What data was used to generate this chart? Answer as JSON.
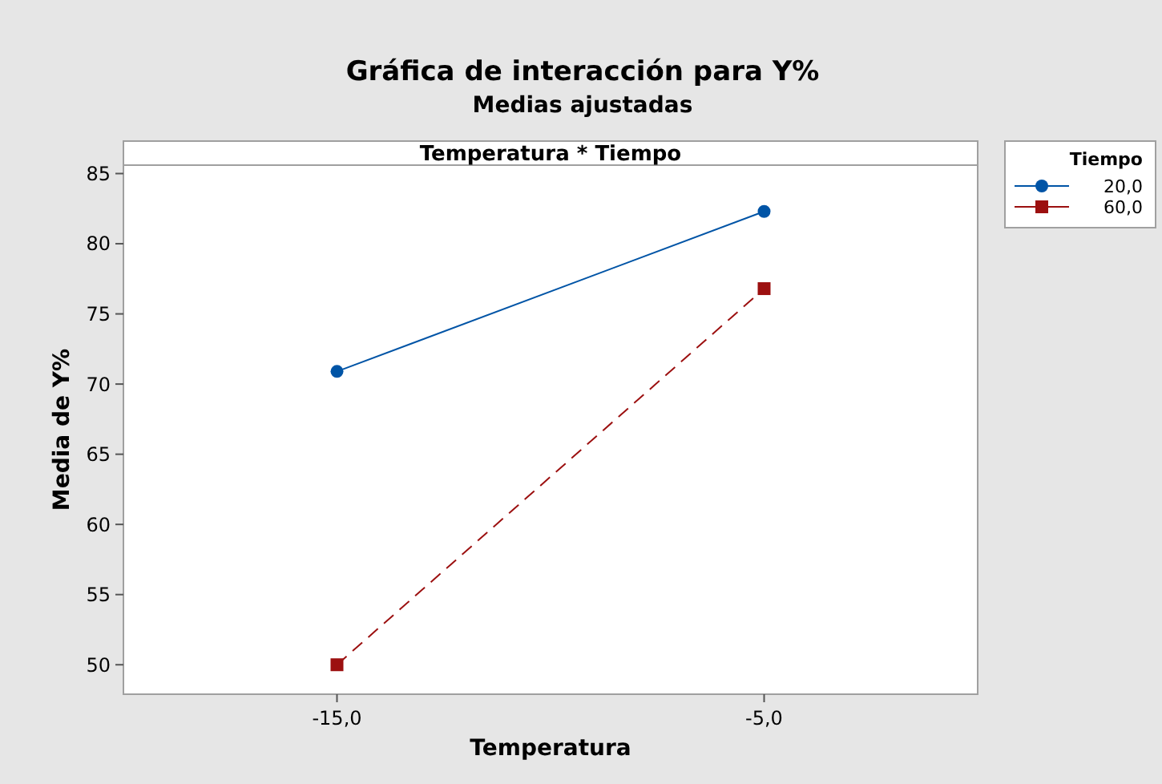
{
  "chart_data": {
    "type": "line",
    "title": "Gráfica de interacción para Y%",
    "subtitle": "Medias ajustadas",
    "xlabel": "Temperatura",
    "ylabel": "Media de Y%",
    "legend_title": "Tiempo",
    "annotations": [
      "Temperatura * Tiempo"
    ],
    "categories": [
      "-15,0",
      "-5,0"
    ],
    "series": [
      {
        "name": "20,0",
        "color": "#0054a6",
        "values": [
          70.9,
          82.3
        ],
        "marker": "circle",
        "line_style": "solid"
      },
      {
        "name": "60,0",
        "color": "#9c1010",
        "values": [
          50.0,
          76.8
        ],
        "marker": "square",
        "line_style": "dashed"
      }
    ],
    "ylim": [
      47.9,
      85.6
    ],
    "yticks": [
      50,
      55,
      60,
      65,
      70,
      75,
      80,
      85
    ],
    "grid": false,
    "legend": "top right"
  }
}
